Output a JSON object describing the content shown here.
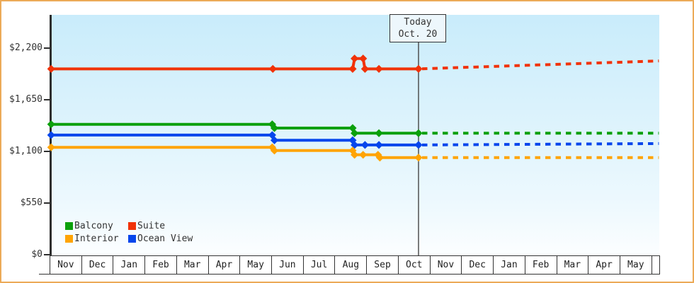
{
  "chart_data": {
    "type": "line",
    "description": "Cruise cabin price history by category with dashed future price projection",
    "y_ticks": [
      {
        "value": 0,
        "label": "$0"
      },
      {
        "value": 550,
        "label": "$550"
      },
      {
        "value": 1100,
        "label": "$1,100"
      },
      {
        "value": 1650,
        "label": "$1,650"
      },
      {
        "value": 2200,
        "label": "$2,200"
      }
    ],
    "x_months": [
      "Nov",
      "Dec",
      "Jan",
      "Feb",
      "Mar",
      "Apr",
      "May",
      "Jun",
      "Jul",
      "Aug",
      "Sep",
      "Oct",
      "Nov",
      "Dec",
      "Jan",
      "Feb",
      "Mar",
      "Apr",
      "May"
    ],
    "today": {
      "line1": "Today",
      "line2": "Oct. 20",
      "month_frac": 11.65
    },
    "axis_range_months": 19.24,
    "series": [
      {
        "name": "Suite",
        "color": "#f13208",
        "solid": [
          [
            0.05,
            1975
          ],
          [
            7.05,
            1975
          ],
          [
            9.57,
            1975
          ],
          [
            9.63,
            2085
          ],
          [
            9.9,
            2085
          ],
          [
            9.96,
            1975
          ],
          [
            10.4,
            1975
          ],
          [
            11.65,
            1975
          ]
        ],
        "projected": [
          [
            11.65,
            1975
          ],
          [
            19.24,
            2060
          ]
        ]
      },
      {
        "name": "Balcony",
        "color": "#0ba00b",
        "solid": [
          [
            0.05,
            1385
          ],
          [
            7.03,
            1385
          ],
          [
            7.1,
            1345
          ],
          [
            9.57,
            1345
          ],
          [
            9.63,
            1290
          ],
          [
            10.4,
            1290
          ],
          [
            11.65,
            1290
          ]
        ],
        "projected": [
          [
            11.65,
            1290
          ],
          [
            19.24,
            1290
          ]
        ]
      },
      {
        "name": "Ocean View",
        "color": "#0646ec",
        "solid": [
          [
            0.05,
            1270
          ],
          [
            7.03,
            1270
          ],
          [
            7.1,
            1215
          ],
          [
            9.57,
            1215
          ],
          [
            9.63,
            1165
          ],
          [
            9.96,
            1165
          ],
          [
            10.4,
            1165
          ],
          [
            11.65,
            1165
          ]
        ],
        "projected": [
          [
            11.65,
            1165
          ],
          [
            19.24,
            1180
          ]
        ]
      },
      {
        "name": "Interior",
        "color": "#ffa404",
        "solid": [
          [
            0.05,
            1140
          ],
          [
            7.03,
            1140
          ],
          [
            7.1,
            1105
          ],
          [
            9.57,
            1105
          ],
          [
            9.63,
            1060
          ],
          [
            9.9,
            1060
          ],
          [
            10.37,
            1060
          ],
          [
            10.43,
            1030
          ],
          [
            11.65,
            1030
          ]
        ],
        "projected": [
          [
            11.65,
            1030
          ],
          [
            19.24,
            1030
          ]
        ]
      }
    ],
    "legend_rows": [
      [
        "Balcony",
        "Suite"
      ],
      [
        "Interior",
        "Ocean View"
      ]
    ]
  }
}
